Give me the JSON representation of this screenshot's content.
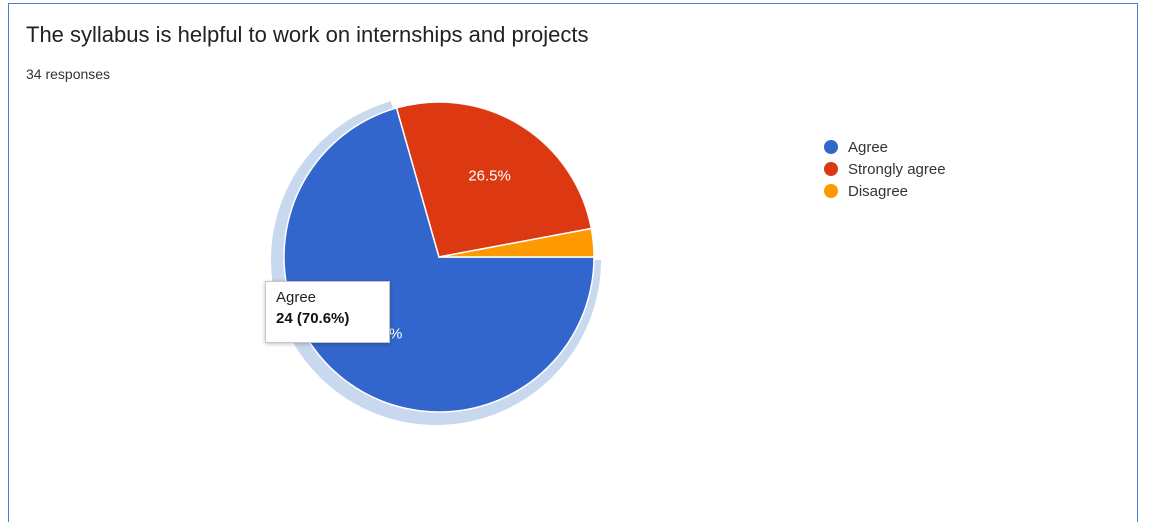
{
  "card": {
    "title": "The syllabus is helpful to work on internships and projects",
    "response_count": "34 responses"
  },
  "tooltip": {
    "label": "Agree",
    "value": "24 (70.6%)"
  },
  "colors": {
    "border": "#4a7fd6",
    "halo": "#c8d8ee"
  },
  "chart_data": {
    "type": "pie",
    "title": "The syllabus is helpful to work on internships and projects",
    "categories": [
      "Agree",
      "Strongly agree",
      "Disagree"
    ],
    "values": [
      24,
      9,
      1
    ],
    "percent_labels": [
      "70.6%",
      "26.5%",
      "2.9%"
    ],
    "colors": [
      "#3366cc",
      "#dc3912",
      "#ff9900"
    ],
    "legend_position": "top-right",
    "highlighted_slice": "Agree"
  }
}
